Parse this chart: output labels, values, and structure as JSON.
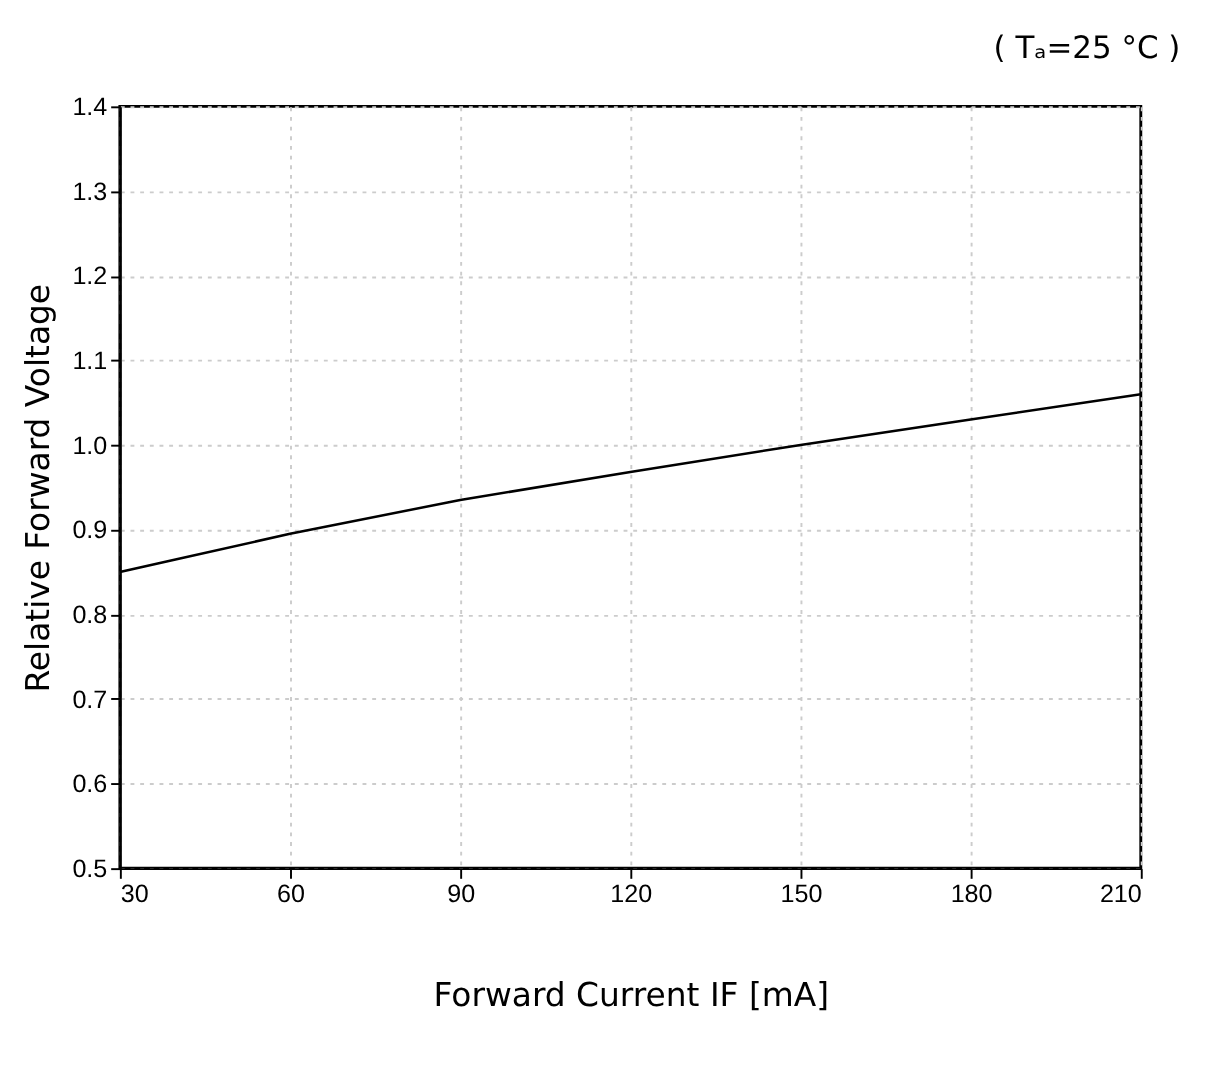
{
  "chart_data": {
    "type": "line",
    "xlabel": "Forward Current  IF [mA]",
    "ylabel": "Relative Forward Voltage",
    "annotations": [
      "( Tₐ=25 °C )"
    ],
    "x": [
      30,
      40,
      60,
      90,
      120,
      150,
      180,
      210
    ],
    "series": [
      {
        "color": "#000000",
        "values": [
          0.85,
          0.865,
          0.895,
          0.935,
          0.968,
          1.0,
          1.03,
          1.06
        ]
      }
    ],
    "xlim": [
      30,
      210
    ],
    "xticks": [
      30,
      60,
      90,
      120,
      150,
      180,
      210
    ],
    "ylim": [
      0.5,
      1.4
    ],
    "yticks": [
      0.5,
      0.6,
      0.7,
      0.8,
      0.9,
      {
        "value": 1.0,
        "label": "1.0"
      },
      1.1,
      1.2,
      1.3,
      1.4
    ],
    "grid": true,
    "marker": "none",
    "line_style": "solid"
  }
}
